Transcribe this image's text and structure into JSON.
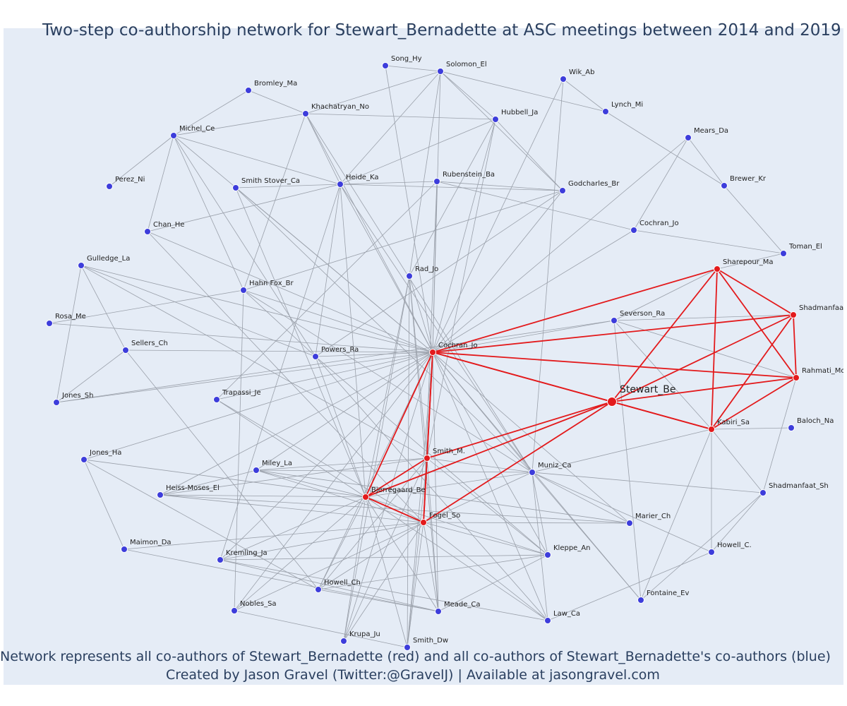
{
  "title": "Two-step co-authorship network for Stewart_Bernadette at ASC meetings between 2014 and 2019",
  "caption_line1": "Network represents all co-authors of Stewart_Bernadette (red) and all co-authors of Stewart_Bernadette's co-authors (blue)",
  "caption_line2": "Created by Jason Gravel (Twitter:@GravelJ) | Available at jasongravel.com",
  "colors": {
    "background": "#e5ecf6",
    "title_text": "#2a3f5f",
    "blue_node": "#3d3ddb",
    "red_node": "#e31a1c",
    "grey_edge": "#9aa0aa",
    "red_edge": "#e31a1c"
  },
  "nodes": [
    {
      "id": "Stewart_Be",
      "group": "focal"
    },
    {
      "id": "Cochran_Jo",
      "group": "red"
    },
    {
      "id": "Sharepour_Ma",
      "group": "red"
    },
    {
      "id": "Shadmanfaat_",
      "group": "red"
    },
    {
      "id": "Rahmati_Mo",
      "group": "red"
    },
    {
      "id": "Kabiri_Sa",
      "group": "red"
    },
    {
      "id": "Smith_M.",
      "group": "red"
    },
    {
      "id": "Bjerregaard_Be",
      "group": "red"
    },
    {
      "id": "Fogel_So",
      "group": "red"
    },
    {
      "id": "Song_Hy",
      "group": "blue"
    },
    {
      "id": "Solomon_El",
      "group": "blue"
    },
    {
      "id": "Wik_Ab",
      "group": "blue"
    },
    {
      "id": "Bromley_Ma",
      "group": "blue"
    },
    {
      "id": "Khachatryan_No",
      "group": "blue"
    },
    {
      "id": "Hubbell_Ja",
      "group": "blue"
    },
    {
      "id": "Lynch_Mi",
      "group": "blue"
    },
    {
      "id": "Michel_Ce",
      "group": "blue"
    },
    {
      "id": "Mears_Da",
      "group": "blue"
    },
    {
      "id": "Perez_Ni",
      "group": "blue"
    },
    {
      "id": "Smith Stover_Ca",
      "group": "blue"
    },
    {
      "id": "Heide_Ka",
      "group": "blue"
    },
    {
      "id": "Rubenstein_Ba",
      "group": "blue"
    },
    {
      "id": "Godcharles_Br",
      "group": "blue"
    },
    {
      "id": "Brewer_Kr",
      "group": "blue"
    },
    {
      "id": "Chan_He",
      "group": "blue"
    },
    {
      "id": "Cochran_Jo",
      "group": "blue",
      "key": "Cochran_Jo_2"
    },
    {
      "id": "Toman_El",
      "group": "blue"
    },
    {
      "id": "Gulledge_La",
      "group": "blue"
    },
    {
      "id": "Rad_Jo",
      "group": "blue"
    },
    {
      "id": "Hahn Fox_Br",
      "group": "blue"
    },
    {
      "id": "Severson_Ra",
      "group": "blue"
    },
    {
      "id": "Rosa_Me",
      "group": "blue"
    },
    {
      "id": "Sellers_Ch",
      "group": "blue"
    },
    {
      "id": "Powers_Ra",
      "group": "blue"
    },
    {
      "id": "Jones_Sh",
      "group": "blue"
    },
    {
      "id": "Trapassi_Je",
      "group": "blue"
    },
    {
      "id": "Baloch_Na",
      "group": "blue"
    },
    {
      "id": "Jones_Ha",
      "group": "blue"
    },
    {
      "id": "Miley_La",
      "group": "blue"
    },
    {
      "id": "Muniz_Ca",
      "group": "blue"
    },
    {
      "id": "Heiss-Moses_El",
      "group": "blue"
    },
    {
      "id": "Shadmanfaat_Sh",
      "group": "blue"
    },
    {
      "id": "Marier_Ch",
      "group": "blue"
    },
    {
      "id": "Maimon_Da",
      "group": "blue"
    },
    {
      "id": "Kremling_Ja",
      "group": "blue"
    },
    {
      "id": "Kleppe_An",
      "group": "blue"
    },
    {
      "id": "Howell_C.",
      "group": "blue"
    },
    {
      "id": "Howell_Ch",
      "group": "blue"
    },
    {
      "id": "Fontaine_Ev",
      "group": "blue"
    },
    {
      "id": "Nobles_Sa",
      "group": "blue"
    },
    {
      "id": "Meade_Ca",
      "group": "blue"
    },
    {
      "id": "Law_Ca",
      "group": "blue"
    },
    {
      "id": "Krupa_Ju",
      "group": "blue"
    },
    {
      "id": "Smith_Dw",
      "group": "blue"
    }
  ]
}
